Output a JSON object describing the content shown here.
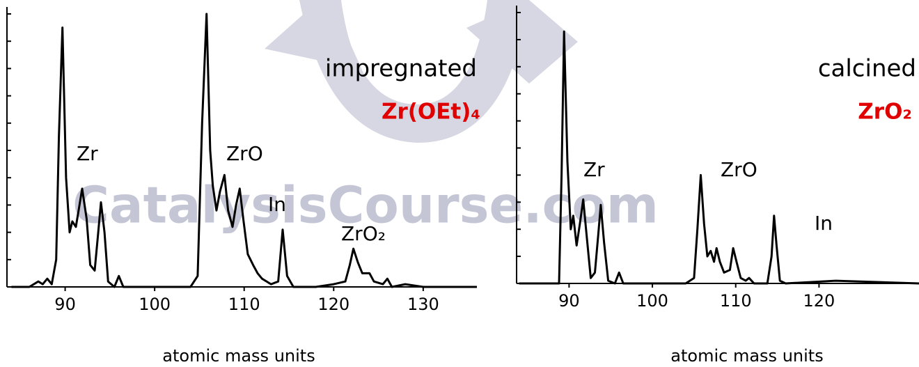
{
  "watermark": "CatalysisCourse.com",
  "chart_data": [
    {
      "type": "line",
      "xlabel": "atomic mass units",
      "xlim": [
        83.5,
        136
      ],
      "ylim": [
        0,
        100
      ],
      "xticks": [
        90,
        100,
        110,
        120,
        130
      ],
      "color": "#000000",
      "annotations": [
        {
          "text": "impregnated",
          "color": "#000000"
        },
        {
          "text": "Zr(OEt)₄",
          "color": "#e00000"
        },
        {
          "text": "Zr",
          "color": "#000000"
        },
        {
          "text": "ZrO",
          "color": "#000000"
        },
        {
          "text": "In",
          "color": "#000000"
        },
        {
          "text": "ZrO₂",
          "color": "#000000"
        }
      ],
      "x": [
        84,
        86,
        87,
        87.5,
        88,
        88.5,
        89,
        89.3,
        89.7,
        90.1,
        90.5,
        90.8,
        91.2,
        91.5,
        91.9,
        92.4,
        92.8,
        93.3,
        93.7,
        94.0,
        94.4,
        94.8,
        95.5,
        96,
        96.5,
        98,
        100,
        104,
        104.8,
        105.3,
        105.8,
        106.2,
        106.5,
        106.9,
        107.3,
        107.8,
        108.2,
        108.7,
        109.1,
        109.5,
        109.9,
        110.4,
        111,
        111.5,
        112,
        113,
        113.8,
        114.3,
        114.8,
        115.5,
        118,
        120,
        121.3,
        121.8,
        122.2,
        122.7,
        123.2,
        124,
        124.5,
        125.5,
        126,
        126.5,
        128,
        130,
        136
      ],
      "values": [
        0,
        0,
        2,
        1,
        3,
        1,
        10,
        55,
        95,
        40,
        20,
        24,
        22,
        28,
        36,
        25,
        8,
        6,
        20,
        31,
        20,
        2,
        0,
        4,
        0,
        0,
        0,
        0,
        4,
        60,
        100,
        50,
        37,
        28,
        35,
        41,
        28,
        22,
        30,
        36,
        25,
        12,
        8,
        5,
        3,
        1,
        2,
        21,
        4,
        0,
        0,
        1,
        2,
        8,
        14,
        9,
        5,
        5,
        2,
        1,
        3,
        0,
        1,
        0,
        0
      ]
    },
    {
      "type": "line",
      "xlabel": "atomic mass units",
      "xlim": [
        83.7,
        132
      ],
      "ylim": [
        0,
        100
      ],
      "xticks": [
        90,
        100,
        110,
        120
      ],
      "color": "#000000",
      "annotations": [
        {
          "text": "calcined",
          "color": "#000000"
        },
        {
          "text": "ZrO₂",
          "color": "#e00000"
        },
        {
          "text": "Zr",
          "color": "#000000"
        },
        {
          "text": "ZrO",
          "color": "#000000"
        },
        {
          "text": "In",
          "color": "#000000"
        }
      ],
      "x": [
        84,
        88,
        88.8,
        89.1,
        89.4,
        89.8,
        90.2,
        90.5,
        90.9,
        91.3,
        91.7,
        92.1,
        92.6,
        93.1,
        93.5,
        93.8,
        94.2,
        94.7,
        95.5,
        96,
        96.5,
        98,
        104,
        105,
        105.4,
        105.8,
        106.2,
        106.6,
        107,
        107.4,
        107.7,
        108.1,
        108.6,
        109.3,
        109.7,
        110.1,
        110.6,
        111.2,
        111.6,
        112.2,
        113.8,
        114.3,
        114.6,
        114.9,
        115.3,
        116,
        122,
        132
      ],
      "values": [
        0,
        0,
        0,
        40,
        93,
        45,
        20,
        25,
        14,
        22,
        31,
        18,
        2,
        4,
        18,
        29,
        15,
        1,
        0,
        4,
        0,
        0,
        0,
        2,
        20,
        40,
        22,
        10,
        12,
        8,
        13,
        8,
        4,
        5,
        13,
        8,
        2,
        1,
        2,
        0,
        0,
        10,
        25,
        14,
        1,
        0,
        1,
        0
      ]
    }
  ]
}
